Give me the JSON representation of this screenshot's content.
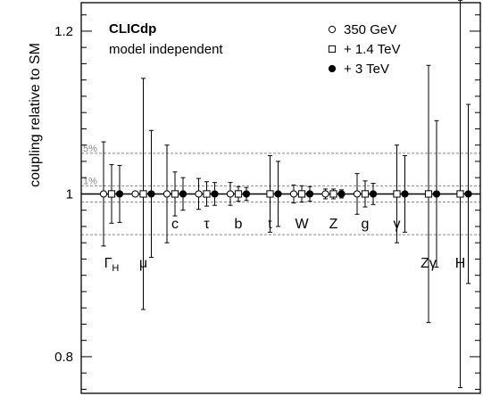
{
  "chart_data": {
    "type": "scatter",
    "title": "CLICdp",
    "subtitle": "model independent",
    "ylabel": "coupling relative to SM",
    "ylim": [
      0.755,
      1.235
    ],
    "yticks": [
      0.8,
      1,
      1.2
    ],
    "ytick_labels": [
      "0.8",
      "1",
      "1.2"
    ],
    "reference_lines": [
      {
        "label": "5%",
        "values": [
          0.95,
          1.05
        ]
      },
      {
        "label": "1%",
        "values": [
          0.99,
          1.01
        ]
      }
    ],
    "categories": [
      "ΓH",
      "μ",
      "c",
      "τ",
      "b",
      "t",
      "W",
      "Z",
      "g",
      "γ",
      "Zγ",
      "H"
    ],
    "label_positions": [
      "low",
      "low",
      "high",
      "high",
      "high",
      "high",
      "high",
      "high",
      "high",
      "high",
      "low",
      "low"
    ],
    "series": [
      {
        "name": "350 GeV",
        "marker": "open-circle",
        "values": [
          1,
          1,
          1,
          1,
          1,
          null,
          1,
          1,
          1,
          null,
          null,
          null
        ],
        "errors": [
          0.064,
          null,
          0.06,
          0.019,
          0.014,
          null,
          0.011,
          0.006,
          0.025,
          null,
          null,
          null
        ]
      },
      {
        "name": "+ 1.4 TeV",
        "marker": "open-square",
        "values": [
          1,
          1,
          1,
          1,
          1,
          1,
          1,
          1,
          1,
          1,
          1,
          1
        ],
        "errors": [
          0.036,
          0.142,
          0.027,
          0.015,
          0.009,
          0.047,
          0.01,
          0.006,
          0.016,
          0.06,
          0.158,
          0.238
        ]
      },
      {
        "name": "+ 3 TeV",
        "marker": "filled-circle",
        "values": [
          1,
          1,
          1,
          1,
          1,
          1,
          1,
          1,
          1,
          1,
          1,
          1
        ],
        "errors": [
          0.035,
          0.078,
          0.02,
          0.014,
          0.008,
          0.04,
          0.009,
          0.005,
          0.013,
          0.047,
          0.09,
          0.11
        ]
      }
    ],
    "legend_position": "top-right",
    "grid": false
  }
}
